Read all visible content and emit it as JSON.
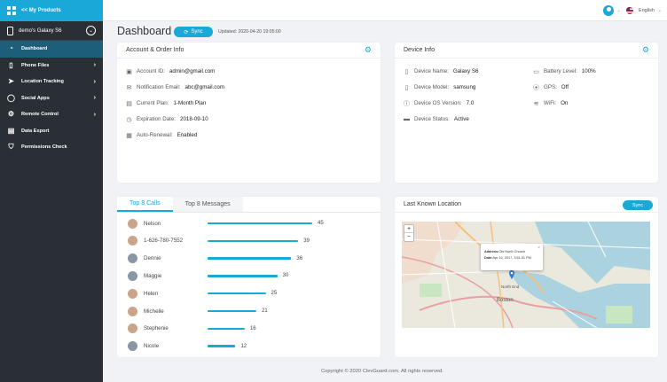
{
  "sidebar": {
    "back_label": "<< My Products",
    "device_label": "demo's Galaxy S6",
    "items": [
      {
        "label": "Dashboard",
        "icon": "speedometer-icon",
        "active": true,
        "arrow": false
      },
      {
        "label": "Phone Files",
        "icon": "phone-icon",
        "active": false,
        "arrow": true
      },
      {
        "label": "Location Tracking",
        "icon": "location-icon",
        "active": false,
        "arrow": true
      },
      {
        "label": "Social Apps",
        "icon": "chat-icon",
        "active": false,
        "arrow": true
      },
      {
        "label": "Remote Control",
        "icon": "gear-icon",
        "active": false,
        "arrow": true
      },
      {
        "label": "Data Export",
        "icon": "document-icon",
        "active": false,
        "arrow": false
      },
      {
        "label": "Permissions Check",
        "icon": "shield-icon",
        "active": false,
        "arrow": false
      }
    ]
  },
  "topbar": {
    "language": "English"
  },
  "header": {
    "title": "Dashboard",
    "sync_label": "Sync",
    "updated": "Updated: 2020-04-20 19:05:00"
  },
  "account": {
    "title": "Account & Order Info",
    "rows": [
      {
        "label": "Account ID:",
        "value": "admin@gmail.com",
        "icon": "id-card-icon"
      },
      {
        "label": "Notification Email:",
        "value": "abc@gmail.com",
        "icon": "envelope-icon"
      },
      {
        "label": "Current Plan:",
        "value": "1-Month Plan",
        "icon": "document-icon"
      },
      {
        "label": "Expiration Date:",
        "value": "2018-09-10",
        "icon": "clock-icon"
      },
      {
        "label": "Auto-Renewal:",
        "value": "Enabled",
        "icon": "renew-icon"
      }
    ]
  },
  "device": {
    "title": "Device Info",
    "left": [
      {
        "label": "Device Name:",
        "value": "Galaxy S6",
        "icon": "phone-icon"
      },
      {
        "label": "Device Model:",
        "value": "samsung",
        "icon": "phone-icon"
      },
      {
        "label": "Device OS Version:",
        "value": "7.0",
        "icon": "info-icon"
      },
      {
        "label": "Device Status:",
        "value": "Active",
        "icon": "monitor-icon"
      }
    ],
    "right": [
      {
        "label": "Battery Level:",
        "value": "100%",
        "icon": "battery-icon"
      },
      {
        "label": "GPS:",
        "value": "Off",
        "icon": "pin-icon"
      },
      {
        "label": "WiFi:",
        "value": "On",
        "icon": "wifi-icon"
      }
    ]
  },
  "calls": {
    "tabs": [
      "Top 8 Calls",
      "Top 8 Messages"
    ],
    "max": 45,
    "rows": [
      {
        "name": "Nelson",
        "count": 45
      },
      {
        "name": "1-626-780-7552",
        "count": 39
      },
      {
        "name": "Dennie",
        "count": 36
      },
      {
        "name": "Maggie",
        "count": 30
      },
      {
        "name": "Helen",
        "count": 25
      },
      {
        "name": "Michelle",
        "count": 21
      },
      {
        "name": "Stephenie",
        "count": 16
      },
      {
        "name": "Nicole",
        "count": 12
      }
    ]
  },
  "location": {
    "title": "Last Known Location",
    "sync_label": "Sync",
    "zoom_in": "+",
    "zoom_out": "−",
    "address_label": "Address:",
    "address_value": "Old North Church",
    "date_label": "Date:",
    "date_value": "Apr 10, 2017, 3:51:31 PM",
    "close": "×",
    "map_label_1": "North End",
    "map_label_2": "Boston"
  },
  "footer": "Copyright © 2020 ClevGuard.com. All rights reserved.",
  "colors": {
    "accent": "#1aa8d8",
    "sidebar": "#2a2f36"
  }
}
